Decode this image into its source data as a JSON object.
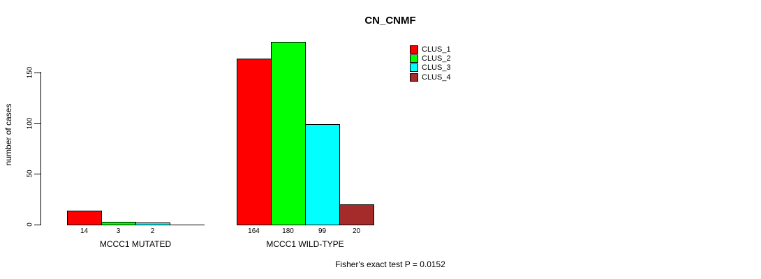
{
  "chart_data": {
    "type": "bar",
    "title": "CN_CNMF",
    "ylabel": "number of cases",
    "xlabel": "",
    "categories": [
      "MCCC1 MUTATED",
      "MCCC1 WILD-TYPE"
    ],
    "series": [
      {
        "name": "CLUS_1",
        "color": "#FF0000",
        "values": [
          14,
          164
        ]
      },
      {
        "name": "CLUS_2",
        "color": "#00FF00",
        "values": [
          3,
          180
        ]
      },
      {
        "name": "CLUS_3",
        "color": "#00FFFF",
        "values": [
          2,
          99
        ]
      },
      {
        "name": "CLUS_4",
        "color": "#A52A2A",
        "values": [
          0,
          20
        ]
      }
    ],
    "bar_labels": [
      [
        "14",
        "3",
        "2",
        ""
      ],
      [
        "164",
        "180",
        "99",
        "20"
      ]
    ],
    "yticks": [
      0,
      50,
      100,
      150
    ],
    "ylim": [
      0,
      150
    ],
    "legend_position": "top-right",
    "grid": false,
    "annotation": "Fisher's exact test P = 0.0152"
  }
}
